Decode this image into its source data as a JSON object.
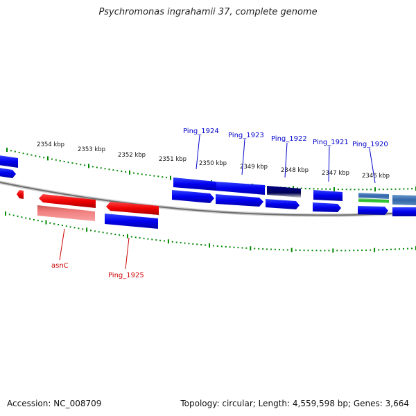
{
  "title": "Psychromonas ingrahamii 37, complete genome",
  "footer": {
    "accession": "Accession: NC_008709",
    "topology": "Topology: circular; Length: 4,559,598 bp; Genes: 3,664"
  },
  "ruler": {
    "kbp_labels": [
      "2354 kbp",
      "2353 kbp",
      "2352 kbp",
      "2351 kbp",
      "2350 kbp",
      "2349 kbp",
      "2348 kbp",
      "2347 kbp",
      "2346 kbp"
    ]
  },
  "gene_labels": {
    "top": [
      "Ping_1924",
      "Ping_1923",
      "Ping_1922",
      "Ping_1921",
      "Ping_1920"
    ],
    "bottom": [
      "asnC",
      "Ping_1925"
    ]
  },
  "colors": {
    "forward_gene": "#0000ee",
    "reverse_gene": "#ee0000",
    "ruler_tick": "#008800",
    "backbone": "#808080",
    "top_label": "#0000cc",
    "bottom_label": "#cc0000"
  }
}
